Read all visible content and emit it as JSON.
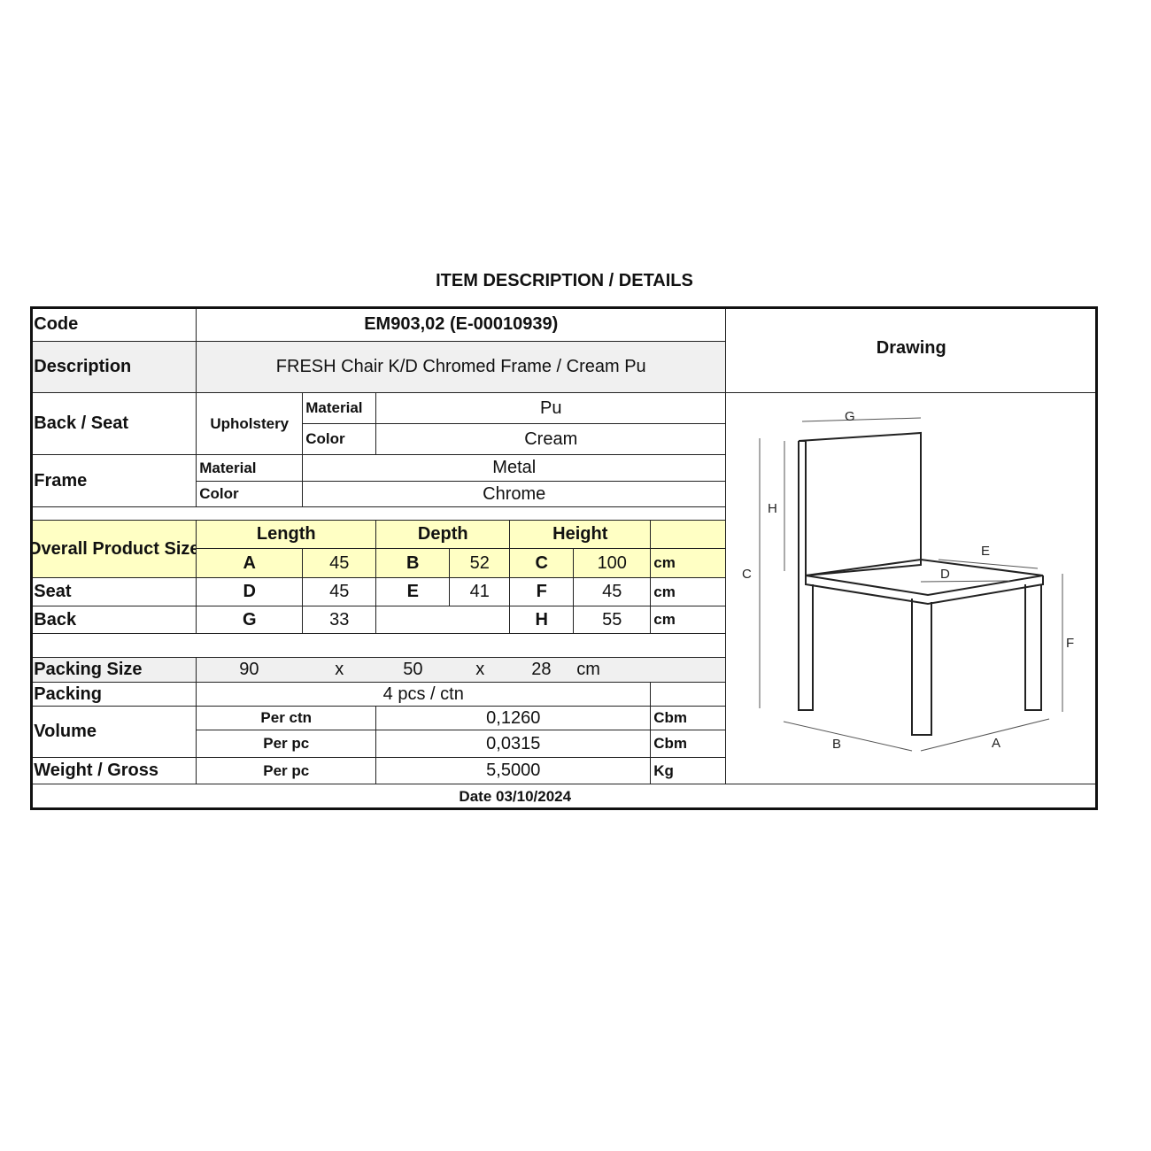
{
  "title": "ITEM DESCRIPTION / DETAILS",
  "code": {
    "label": "Code",
    "value": "EM903,02 (E-00010939)"
  },
  "description": {
    "label": "Description",
    "value": "FRESH Chair K/D Chromed Frame / Cream Pu"
  },
  "drawing": {
    "label": "Drawing",
    "dimension_letters": [
      "A",
      "B",
      "C",
      "D",
      "E",
      "F",
      "G",
      "H"
    ]
  },
  "back_seat": {
    "label": "Back / Seat",
    "sub": "Upholstery",
    "material_label": "Material",
    "material": "Pu",
    "color_label": "Color",
    "color": "Cream"
  },
  "frame": {
    "label": "Frame",
    "material_label": "Material",
    "material": "Metal",
    "color_label": "Color",
    "color": "Chrome"
  },
  "size": {
    "label": "Overall Product Size",
    "headers": [
      "Length",
      "Depth",
      "Height"
    ],
    "overall": [
      "A",
      "45",
      "B",
      "52",
      "C",
      "100",
      "cm"
    ],
    "seat_label": "Seat",
    "seat": [
      "D",
      "45",
      "E",
      "41",
      "F",
      "45",
      "cm"
    ],
    "back_label": "Back",
    "back": [
      "G",
      "33",
      "H",
      "55",
      "cm"
    ]
  },
  "packing_size": {
    "label": "Packing Size",
    "length": "90",
    "x1": "x",
    "width": "50",
    "x2": "x",
    "height": "28",
    "unit": "cm"
  },
  "packing": {
    "label": "Packing",
    "value": "4 pcs / ctn"
  },
  "volume": {
    "label": "Volume",
    "per_ctn_label": "Per ctn",
    "per_ctn": "0,1260",
    "per_ctn_unit": "Cbm",
    "per_pc_label": "Per pc",
    "per_pc": "0,0315",
    "per_pc_unit": "Cbm"
  },
  "weight": {
    "label": "Weight / Gross",
    "per_label": "Per pc",
    "value": "5,5000",
    "unit": "Kg"
  },
  "date": "Date 03/10/2024",
  "colors": {
    "highlight": "#ffffc4",
    "shaded": "#f0f0f0"
  }
}
